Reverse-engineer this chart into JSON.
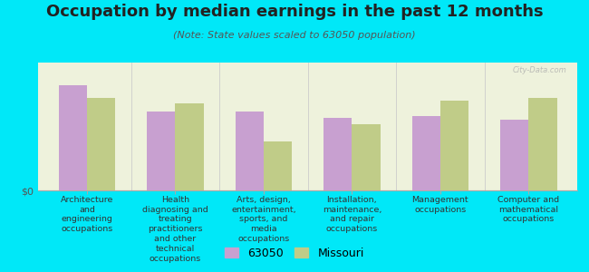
{
  "title": "Occupation by median earnings in the past 12 months",
  "subtitle": "(Note: State values scaled to 63050 population)",
  "background_outer": "#00e8f8",
  "background_inner": "#eef2dc",
  "categories": [
    "Architecture\nand\nengineering\noccupations",
    "Health\ndiagnosing and\ntreating\npractitioners\nand other\ntechnical\noccupations",
    "Arts, design,\nentertainment,\nsports, and\nmedia\noccupations",
    "Installation,\nmaintenance,\nand repair\noccupations",
    "Management\noccupations",
    "Computer and\nmathematical\noccupations"
  ],
  "values_63050": [
    0.82,
    0.62,
    0.62,
    0.57,
    0.58,
    0.55
  ],
  "values_missouri": [
    0.72,
    0.68,
    0.38,
    0.52,
    0.7,
    0.72
  ],
  "color_63050": "#c8a0d0",
  "color_missouri": "#c0cc88",
  "bar_width": 0.32,
  "ylabel": "$0",
  "legend_63050": "63050",
  "legend_missouri": "Missouri",
  "watermark": "City-Data.com",
  "title_fontsize": 13,
  "subtitle_fontsize": 8,
  "label_fontsize": 6.8,
  "legend_fontsize": 9
}
